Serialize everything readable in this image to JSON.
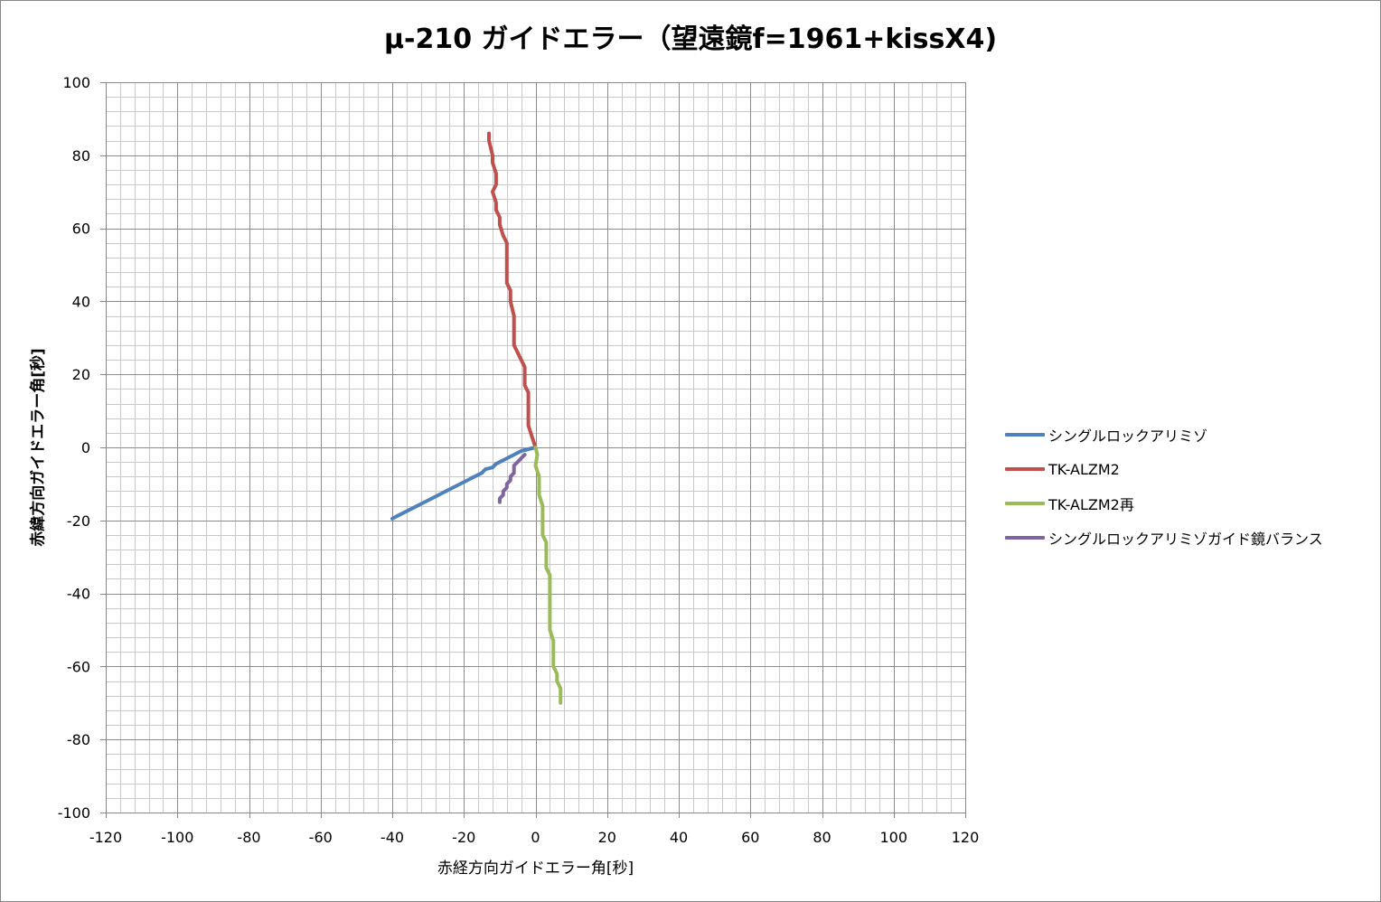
{
  "chart_data": {
    "type": "line",
    "title": "μ-210 ガイドエラー（望遠鏡f=1961+kissX4)",
    "xlabel": "赤経方向ガイドエラー角[秒]",
    "ylabel": "赤緯方向ガイドエラー角[秒]",
    "xlim": [
      -120,
      120
    ],
    "ylim": [
      -100,
      100
    ],
    "x_ticks": [
      -120,
      -100,
      -80,
      -60,
      -40,
      -20,
      0,
      20,
      40,
      60,
      80,
      100,
      120
    ],
    "y_ticks": [
      100,
      80,
      60,
      40,
      20,
      0,
      -20,
      -40,
      -60,
      -80,
      -100
    ],
    "x_major_step": 20,
    "y_major_step": 20,
    "x_minor_step": 4,
    "y_minor_step": 4,
    "grid": true,
    "legend_position": "right",
    "series": [
      {
        "name": "シングルロックアリミゾ",
        "color": "#4f81bd",
        "points": [
          [
            0,
            0
          ],
          [
            -2,
            -0.5
          ],
          [
            -4,
            -1
          ],
          [
            -6,
            -2
          ],
          [
            -8,
            -3
          ],
          [
            -10,
            -4
          ],
          [
            -11,
            -4.5
          ],
          [
            -12,
            -5.5
          ],
          [
            -14,
            -6
          ],
          [
            -15,
            -7
          ],
          [
            -17,
            -8
          ],
          [
            -19,
            -9
          ],
          [
            -21,
            -10
          ],
          [
            -23,
            -11
          ],
          [
            -26,
            -12.5
          ],
          [
            -29,
            -14
          ],
          [
            -32,
            -15.5
          ],
          [
            -35,
            -17
          ],
          [
            -38,
            -18.5
          ],
          [
            -40,
            -19.5
          ]
        ]
      },
      {
        "name": "TK-ALZM2",
        "color": "#c0504d",
        "points": [
          [
            0,
            0
          ],
          [
            -1,
            3
          ],
          [
            -2,
            6
          ],
          [
            -2,
            10
          ],
          [
            -2,
            15
          ],
          [
            -3,
            17
          ],
          [
            -3,
            22
          ],
          [
            -4,
            24
          ],
          [
            -5,
            26
          ],
          [
            -6,
            28
          ],
          [
            -6,
            32
          ],
          [
            -6,
            36
          ],
          [
            -7,
            40
          ],
          [
            -7,
            43
          ],
          [
            -8,
            45
          ],
          [
            -8,
            50
          ],
          [
            -8,
            56
          ],
          [
            -9,
            58
          ],
          [
            -10,
            61
          ],
          [
            -10,
            63
          ],
          [
            -11,
            65
          ],
          [
            -11,
            67
          ],
          [
            -12,
            70
          ],
          [
            -11,
            72
          ],
          [
            -11,
            75
          ],
          [
            -12,
            78
          ],
          [
            -12,
            80
          ],
          [
            -13,
            84
          ],
          [
            -13,
            86
          ]
        ]
      },
      {
        "name": "TK-ALZM2再",
        "color": "#9bbb59",
        "points": [
          [
            0,
            0
          ],
          [
            0.5,
            -2
          ],
          [
            0,
            -5
          ],
          [
            1,
            -8
          ],
          [
            1,
            -10
          ],
          [
            1,
            -13
          ],
          [
            2,
            -16
          ],
          [
            2,
            -19
          ],
          [
            2,
            -22
          ],
          [
            2,
            -24
          ],
          [
            3,
            -26
          ],
          [
            3,
            -30
          ],
          [
            3,
            -33
          ],
          [
            4,
            -35
          ],
          [
            4,
            -40
          ],
          [
            4,
            -45
          ],
          [
            4,
            -50
          ],
          [
            5,
            -53
          ],
          [
            5,
            -56
          ],
          [
            5,
            -58
          ],
          [
            5,
            -60
          ],
          [
            6,
            -62
          ],
          [
            6,
            -64
          ],
          [
            7,
            -66
          ],
          [
            7,
            -68
          ],
          [
            7,
            -70
          ]
        ]
      },
      {
        "name": "シングルロックアリミゾガイド鏡バランス",
        "color": "#8064a2",
        "points": [
          [
            -3,
            -2
          ],
          [
            -4,
            -3
          ],
          [
            -5,
            -4
          ],
          [
            -6,
            -5
          ],
          [
            -6,
            -7
          ],
          [
            -7,
            -8
          ],
          [
            -7,
            -9
          ],
          [
            -8,
            -10
          ],
          [
            -8,
            -11
          ],
          [
            -9,
            -12
          ],
          [
            -9,
            -13
          ],
          [
            -10,
            -14
          ],
          [
            -10,
            -15
          ]
        ]
      }
    ]
  }
}
